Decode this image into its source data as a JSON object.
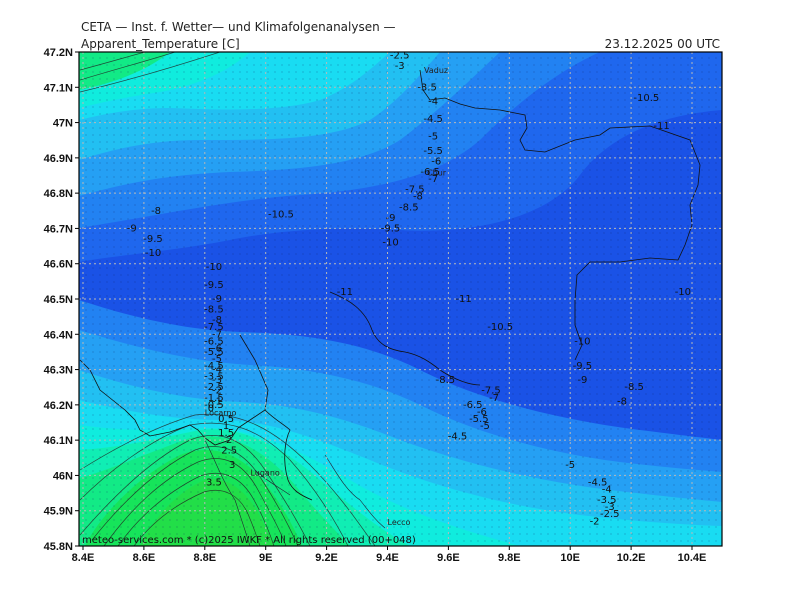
{
  "header": {
    "org": "CETA — Inst. f. Wetter— und Klimafolgenanalysen —",
    "parameter": "Apparent_Temperature [C]",
    "datetime": "23.12.2025 00 UTC"
  },
  "footer": {
    "credit": "meteo-services.com * (c)2025 IWKF * All rights reserved (00+048)"
  },
  "map": {
    "lon_range": [
      8.4,
      10.5
    ],
    "lat_range": [
      45.8,
      47.2
    ],
    "lon_ticks": [
      "8.4E",
      "8.6E",
      "8.8E",
      "9E",
      "9.2E",
      "9.4E",
      "9.6E",
      "9.8E",
      "10E",
      "10.2E",
      "10.4E"
    ],
    "lat_ticks": [
      "47.2N",
      "47.1N",
      "47N",
      "46.9N",
      "46.8N",
      "46.7N",
      "46.6N",
      "46.5N",
      "46.4N",
      "46.3N",
      "46.2N",
      "46.1N",
      "46N",
      "45.9N",
      "45.8N"
    ],
    "palette": [
      "#1a52e6",
      "#1f67ee",
      "#2282f2",
      "#25a0f4",
      "#22c0f2",
      "#19dcf2",
      "#10ecde",
      "#10eeb4",
      "#12ea86",
      "#16e45a",
      "#22de48"
    ],
    "cities": [
      {
        "name": "Vaduz",
        "lon": 9.52,
        "lat": 47.14
      },
      {
        "name": "Chur",
        "lon": 9.53,
        "lat": 46.85
      },
      {
        "name": "Locarno",
        "lon": 8.8,
        "lat": 46.17
      },
      {
        "name": "Lugano",
        "lon": 8.95,
        "lat": 46.0
      },
      {
        "name": "Lecco",
        "lon": 9.4,
        "lat": 45.86
      }
    ],
    "contour_labels": [
      {
        "t": "-2.5",
        "lon": 9.44,
        "lat": 47.19
      },
      {
        "t": "-3",
        "lon": 9.44,
        "lat": 47.16
      },
      {
        "t": "-3.5",
        "lon": 9.53,
        "lat": 47.1
      },
      {
        "t": "-4",
        "lon": 9.55,
        "lat": 47.06
      },
      {
        "t": "-4.5",
        "lon": 9.55,
        "lat": 47.01
      },
      {
        "t": "-5",
        "lon": 9.55,
        "lat": 46.96
      },
      {
        "t": "-5.5",
        "lon": 9.55,
        "lat": 46.92
      },
      {
        "t": "-6",
        "lon": 9.56,
        "lat": 46.89
      },
      {
        "t": "-6.5",
        "lon": 9.54,
        "lat": 46.86
      },
      {
        "t": "-7",
        "lon": 9.55,
        "lat": 46.84
      },
      {
        "t": "-7.5",
        "lon": 9.49,
        "lat": 46.81
      },
      {
        "t": "-8",
        "lon": 9.5,
        "lat": 46.79
      },
      {
        "t": "-8.5",
        "lon": 9.47,
        "lat": 46.76
      },
      {
        "t": "-9",
        "lon": 9.41,
        "lat": 46.73
      },
      {
        "t": "-9.5",
        "lon": 9.41,
        "lat": 46.7
      },
      {
        "t": "-10",
        "lon": 9.41,
        "lat": 46.66
      },
      {
        "t": "-10.5",
        "lon": 10.25,
        "lat": 47.07
      },
      {
        "t": "-11",
        "lon": 10.3,
        "lat": 46.99
      },
      {
        "t": "-8",
        "lon": 8.64,
        "lat": 46.75
      },
      {
        "t": "-9",
        "lon": 8.56,
        "lat": 46.7
      },
      {
        "t": "-9.5",
        "lon": 8.63,
        "lat": 46.67
      },
      {
        "t": "-10",
        "lon": 8.63,
        "lat": 46.63
      },
      {
        "t": "-10.5",
        "lon": 9.05,
        "lat": 46.74
      },
      {
        "t": "-11",
        "lon": 9.26,
        "lat": 46.52
      },
      {
        "t": "-11",
        "lon": 9.65,
        "lat": 46.5
      },
      {
        "t": "-10",
        "lon": 10.37,
        "lat": 46.52
      },
      {
        "t": "-10.5",
        "lon": 9.77,
        "lat": 46.42
      },
      {
        "t": "-10",
        "lon": 10.04,
        "lat": 46.38
      },
      {
        "t": "-9.5",
        "lon": 10.04,
        "lat": 46.31
      },
      {
        "t": "-9",
        "lon": 10.04,
        "lat": 46.27
      },
      {
        "t": "-8.5",
        "lon": 10.21,
        "lat": 46.25
      },
      {
        "t": "-8",
        "lon": 10.17,
        "lat": 46.21
      },
      {
        "t": "-8.5",
        "lon": 9.59,
        "lat": 46.27
      },
      {
        "t": "-7.5",
        "lon": 9.74,
        "lat": 46.24
      },
      {
        "t": "-7",
        "lon": 9.75,
        "lat": 46.22
      },
      {
        "t": "-6.5",
        "lon": 9.68,
        "lat": 46.2
      },
      {
        "t": "-6",
        "lon": 9.71,
        "lat": 46.18
      },
      {
        "t": "-5.5",
        "lon": 9.7,
        "lat": 46.16
      },
      {
        "t": "-5",
        "lon": 9.72,
        "lat": 46.14
      },
      {
        "t": "-4.5",
        "lon": 9.63,
        "lat": 46.11
      },
      {
        "t": "-5",
        "lon": 10.0,
        "lat": 46.03
      },
      {
        "t": "-4.5",
        "lon": 10.09,
        "lat": 45.98
      },
      {
        "t": "-4",
        "lon": 10.12,
        "lat": 45.96
      },
      {
        "t": "-3.5",
        "lon": 10.12,
        "lat": 45.93
      },
      {
        "t": "-3",
        "lon": 10.13,
        "lat": 45.91
      },
      {
        "t": "-2.5",
        "lon": 10.13,
        "lat": 45.89
      },
      {
        "t": "-2",
        "lon": 10.08,
        "lat": 45.87
      },
      {
        "t": "-10",
        "lon": 8.83,
        "lat": 46.59
      },
      {
        "t": "-9.5",
        "lon": 8.83,
        "lat": 46.54
      },
      {
        "t": "-9",
        "lon": 8.84,
        "lat": 46.5
      },
      {
        "t": "-8.5",
        "lon": 8.83,
        "lat": 46.47
      },
      {
        "t": "-8",
        "lon": 8.84,
        "lat": 46.44
      },
      {
        "t": "-7.5",
        "lon": 8.83,
        "lat": 46.42
      },
      {
        "t": "-7",
        "lon": 8.84,
        "lat": 46.4
      },
      {
        "t": "-6.5",
        "lon": 8.83,
        "lat": 46.38
      },
      {
        "t": "-6",
        "lon": 8.84,
        "lat": 46.36
      },
      {
        "t": "-5.5",
        "lon": 8.83,
        "lat": 46.35
      },
      {
        "t": "-5",
        "lon": 8.84,
        "lat": 46.33
      },
      {
        "t": "-4.5",
        "lon": 8.83,
        "lat": 46.31
      },
      {
        "t": "-4",
        "lon": 8.84,
        "lat": 46.3
      },
      {
        "t": "-3.5",
        "lon": 8.83,
        "lat": 46.28
      },
      {
        "t": "-3",
        "lon": 8.84,
        "lat": 46.27
      },
      {
        "t": "-2.5",
        "lon": 8.83,
        "lat": 46.25
      },
      {
        "t": "-2",
        "lon": 8.84,
        "lat": 46.24
      },
      {
        "t": "-1.5",
        "lon": 8.83,
        "lat": 46.22
      },
      {
        "t": "-1",
        "lon": 8.84,
        "lat": 46.21
      },
      {
        "t": "-0.5",
        "lon": 8.83,
        "lat": 46.2
      },
      {
        "t": "0",
        "lon": 8.82,
        "lat": 46.19
      },
      {
        "t": "0.5",
        "lon": 8.87,
        "lat": 46.16
      },
      {
        "t": "1",
        "lon": 8.87,
        "lat": 46.14
      },
      {
        "t": "1.5",
        "lon": 8.87,
        "lat": 46.12
      },
      {
        "t": "2",
        "lon": 8.88,
        "lat": 46.1
      },
      {
        "t": "2.5",
        "lon": 8.88,
        "lat": 46.07
      },
      {
        "t": "3",
        "lon": 8.89,
        "lat": 46.03
      },
      {
        "t": "3.5",
        "lon": 8.83,
        "lat": 45.98
      }
    ]
  }
}
